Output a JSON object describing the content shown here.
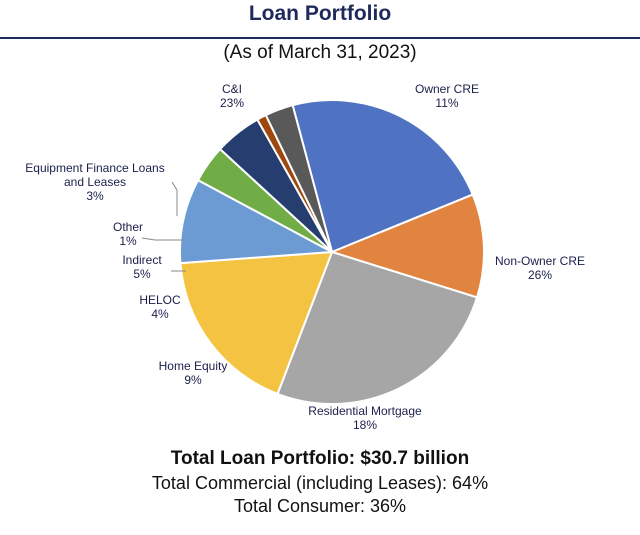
{
  "header": {
    "title": "Loan Portfolio",
    "subtitle": "(As of March 31, 2023)"
  },
  "chart_data": {
    "type": "pie",
    "title": "Loan Portfolio",
    "subtitle": "(As of March 31, 2023)",
    "slices": [
      {
        "label": [
          "C&I"
        ],
        "value": 23,
        "pct": "23%",
        "color": "#4f73c2"
      },
      {
        "label": [
          "Owner CRE"
        ],
        "value": 11,
        "pct": "11%",
        "color": "#e08440"
      },
      {
        "label": [
          "Non-Owner CRE"
        ],
        "value": 26,
        "pct": "26%",
        "color": "#a6a6a6"
      },
      {
        "label": [
          "Residential Mortgage"
        ],
        "value": 18,
        "pct": "18%",
        "color": "#f5c342"
      },
      {
        "label": [
          "Home Equity"
        ],
        "value": 9,
        "pct": "9%",
        "color": "#6b9bd2"
      },
      {
        "label": [
          "HELOC"
        ],
        "value": 4,
        "pct": "4%",
        "color": "#71ad47"
      },
      {
        "label": [
          "Indirect"
        ],
        "value": 5,
        "pct": "5%",
        "color": "#263d70"
      },
      {
        "label": [
          "Other"
        ],
        "value": 1,
        "pct": "1%",
        "color": "#9e480e"
      },
      {
        "label": [
          "Equipment Finance Loans",
          "and Leases"
        ],
        "value": 3,
        "pct": "3%",
        "color": "#595959"
      }
    ]
  },
  "footer": {
    "total": "Total Loan Portfolio: $30.7 billion",
    "commercial": "Total Commercial (including Leases): 64%",
    "consumer": "Total Consumer: 36%"
  }
}
